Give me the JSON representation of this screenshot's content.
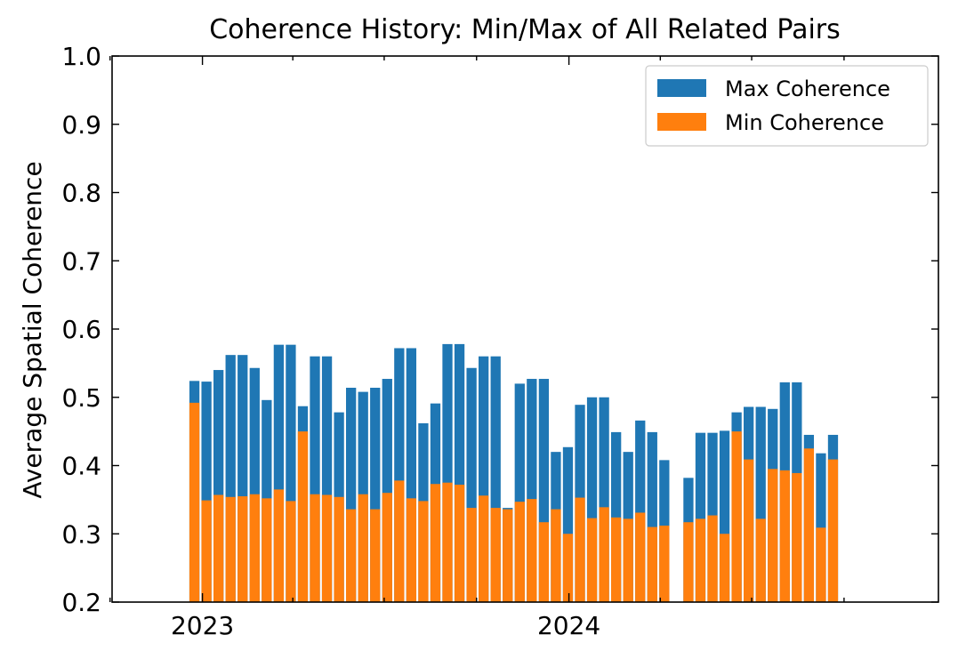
{
  "chart_data": {
    "type": "bar",
    "title": "Coherence History: Min/Max of All Related Pairs",
    "xlabel": "",
    "ylabel": "Average Spatial Coherence",
    "ylim": [
      0.2,
      1.0
    ],
    "xlim": [
      "2022-10-03",
      "2025-01-03"
    ],
    "yticks": [
      "0.2",
      "0.3",
      "0.4",
      "0.5",
      "0.6",
      "0.7",
      "0.8",
      "0.9",
      "1.0"
    ],
    "xticks": [
      {
        "date": "2023-01-01",
        "label": "2023"
      },
      {
        "date": "2024-01-01",
        "label": "2024"
      }
    ],
    "minor_xticks": [
      "2022-10-01",
      "2023-04-01",
      "2023-07-01",
      "2023-10-01",
      "2024-04-01",
      "2024-07-01",
      "2024-10-01"
    ],
    "grid": false,
    "legend_position": "top-right",
    "colors": {
      "max": "#1f77b4",
      "min": "#ff7f0e"
    },
    "series": [
      {
        "name": "Max Coherence",
        "color": "#1f77b4",
        "x": [
          "2022-12-24",
          "2023-01-05",
          "2023-01-17",
          "2023-01-29",
          "2023-02-10",
          "2023-02-22",
          "2023-03-06",
          "2023-03-18",
          "2023-03-30",
          "2023-04-11",
          "2023-04-23",
          "2023-05-05",
          "2023-05-17",
          "2023-05-29",
          "2023-06-10",
          "2023-06-22",
          "2023-07-04",
          "2023-07-16",
          "2023-07-28",
          "2023-08-09",
          "2023-08-21",
          "2023-09-02",
          "2023-09-14",
          "2023-09-26",
          "2023-10-08",
          "2023-10-20",
          "2023-11-01",
          "2023-11-13",
          "2023-11-25",
          "2023-12-07",
          "2023-12-19",
          "2023-12-31",
          "2024-01-12",
          "2024-01-24",
          "2024-02-05",
          "2024-02-17",
          "2024-02-29",
          "2024-03-12",
          "2024-03-24",
          "2024-04-05",
          "2024-04-29",
          "2024-05-11",
          "2024-05-23",
          "2024-06-04",
          "2024-06-16",
          "2024-06-28",
          "2024-07-10",
          "2024-07-22",
          "2024-08-03",
          "2024-08-15",
          "2024-08-27",
          "2024-09-08",
          "2024-09-20",
          "2024-10-02"
        ],
        "values": [
          0.524,
          0.523,
          0.54,
          0.562,
          0.562,
          0.543,
          0.496,
          0.577,
          0.577,
          0.487,
          0.56,
          0.56,
          0.478,
          0.514,
          0.508,
          0.514,
          0.527,
          0.572,
          0.572,
          0.462,
          0.491,
          0.578,
          0.578,
          0.543,
          0.56,
          0.56,
          0.338,
          0.52,
          0.527,
          0.527,
          0.42,
          0.427,
          0.489,
          0.5,
          0.5,
          0.449,
          0.42,
          0.466,
          0.449,
          0.408,
          0.382,
          0.448,
          0.448,
          0.451,
          0.478,
          0.486,
          0.486,
          0.483,
          0.522,
          0.522,
          0.445,
          0.418,
          0.445,
          null
        ]
      },
      {
        "name": "Min Coherence",
        "color": "#ff7f0e",
        "x": [
          "2022-12-24",
          "2023-01-05",
          "2023-01-17",
          "2023-01-29",
          "2023-02-10",
          "2023-02-22",
          "2023-03-06",
          "2023-03-18",
          "2023-03-30",
          "2023-04-11",
          "2023-04-23",
          "2023-05-05",
          "2023-05-17",
          "2023-05-29",
          "2023-06-10",
          "2023-06-22",
          "2023-07-04",
          "2023-07-16",
          "2023-07-28",
          "2023-08-09",
          "2023-08-21",
          "2023-09-02",
          "2023-09-14",
          "2023-09-26",
          "2023-10-08",
          "2023-10-20",
          "2023-11-01",
          "2023-11-13",
          "2023-11-25",
          "2023-12-07",
          "2023-12-19",
          "2023-12-31",
          "2024-01-12",
          "2024-01-24",
          "2024-02-05",
          "2024-02-17",
          "2024-02-29",
          "2024-03-12",
          "2024-03-24",
          "2024-04-05",
          "2024-04-29",
          "2024-05-11",
          "2024-05-23",
          "2024-06-04",
          "2024-06-16",
          "2024-06-28",
          "2024-07-10",
          "2024-07-22",
          "2024-08-03",
          "2024-08-15",
          "2024-08-27",
          "2024-09-08",
          "2024-09-20",
          "2024-10-02"
        ],
        "values": [
          0.492,
          0.349,
          0.357,
          0.354,
          0.355,
          0.358,
          0.352,
          0.365,
          0.348,
          0.45,
          0.358,
          0.357,
          0.354,
          0.336,
          0.358,
          0.336,
          0.36,
          0.378,
          0.352,
          0.348,
          0.373,
          0.375,
          0.372,
          0.338,
          0.356,
          0.338,
          0.336,
          0.347,
          0.351,
          0.317,
          0.336,
          0.3,
          0.353,
          0.323,
          0.339,
          0.324,
          0.322,
          0.331,
          0.31,
          0.312,
          0.317,
          0.322,
          0.327,
          0.3,
          0.45,
          0.409,
          0.322,
          0.395,
          0.393,
          0.389,
          0.425,
          0.309,
          0.409,
          null
        ]
      }
    ]
  }
}
